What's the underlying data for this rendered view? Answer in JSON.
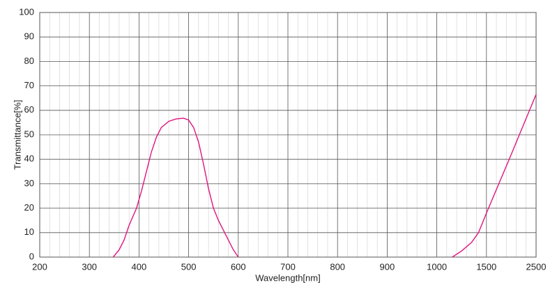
{
  "chart_data": {
    "type": "line",
    "x_label": "Wavelength[nm]",
    "y_label": "Transmittance[%]",
    "xlim": [
      200,
      2500
    ],
    "ylim": [
      0,
      100
    ],
    "xticks": [
      200,
      300,
      400,
      500,
      600,
      700,
      800,
      900,
      1000,
      1500,
      2500
    ],
    "yticks": [
      0,
      10,
      20,
      30,
      40,
      50,
      60,
      70,
      80,
      90,
      100
    ],
    "grid": true,
    "minor_per_interval": 5,
    "series": [
      {
        "color": "#e0147f",
        "x": [
          348,
          360,
          370,
          380,
          395,
          405,
          415,
          425,
          435,
          445,
          460,
          475,
          490,
          500,
          510,
          520,
          530,
          540,
          550,
          560,
          575,
          590,
          600,
          null,
          1155,
          1250,
          1350,
          1420,
          1460,
          1500,
          2000,
          2500
        ],
        "values": [
          0,
          3,
          7,
          13,
          20,
          27,
          35,
          43,
          49,
          53,
          55.5,
          56.5,
          56.8,
          56,
          53,
          47,
          38,
          28,
          20,
          15,
          9,
          3,
          0,
          null,
          0,
          2.5,
          6,
          10,
          14,
          18,
          42,
          66.5
        ]
      }
    ]
  }
}
